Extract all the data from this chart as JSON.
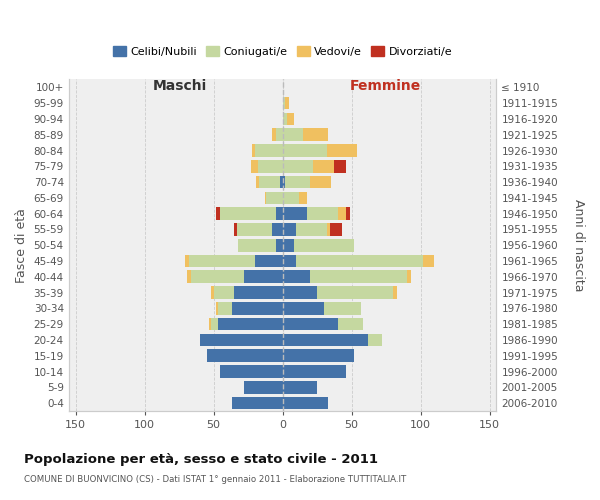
{
  "age_groups": [
    "100+",
    "95-99",
    "90-94",
    "85-89",
    "80-84",
    "75-79",
    "70-74",
    "65-69",
    "60-64",
    "55-59",
    "50-54",
    "45-49",
    "40-44",
    "35-39",
    "30-34",
    "25-29",
    "20-24",
    "15-19",
    "10-14",
    "5-9",
    "0-4"
  ],
  "birth_years": [
    "≤ 1910",
    "1911-1915",
    "1916-1920",
    "1921-1925",
    "1926-1930",
    "1931-1935",
    "1936-1940",
    "1941-1945",
    "1946-1950",
    "1951-1955",
    "1956-1960",
    "1961-1965",
    "1966-1970",
    "1971-1975",
    "1976-1980",
    "1981-1985",
    "1986-1990",
    "1991-1995",
    "1996-2000",
    "2001-2005",
    "2006-2010"
  ],
  "maschi": {
    "celibi": [
      0,
      0,
      0,
      0,
      0,
      0,
      2,
      0,
      5,
      8,
      5,
      20,
      28,
      35,
      37,
      47,
      60,
      55,
      45,
      28,
      37
    ],
    "coniugati": [
      0,
      0,
      0,
      5,
      20,
      18,
      15,
      12,
      40,
      25,
      27,
      48,
      38,
      15,
      10,
      5,
      0,
      0,
      0,
      0,
      0
    ],
    "vedovi": [
      0,
      0,
      0,
      3,
      2,
      5,
      2,
      1,
      0,
      0,
      0,
      3,
      3,
      2,
      1,
      1,
      0,
      0,
      0,
      0,
      0
    ],
    "divorziati": [
      0,
      0,
      0,
      0,
      0,
      0,
      0,
      0,
      3,
      2,
      0,
      0,
      0,
      0,
      0,
      0,
      0,
      0,
      0,
      0,
      0
    ]
  },
  "femmine": {
    "nubili": [
      0,
      0,
      0,
      0,
      0,
      0,
      2,
      0,
      18,
      10,
      8,
      10,
      20,
      25,
      30,
      40,
      62,
      52,
      46,
      25,
      33
    ],
    "coniugate": [
      0,
      2,
      3,
      15,
      32,
      22,
      18,
      12,
      22,
      22,
      44,
      92,
      70,
      55,
      27,
      18,
      10,
      0,
      0,
      0,
      0
    ],
    "vedove": [
      0,
      3,
      5,
      18,
      22,
      15,
      15,
      6,
      6,
      2,
      0,
      8,
      3,
      3,
      0,
      0,
      0,
      0,
      0,
      0,
      0
    ],
    "divorziate": [
      0,
      0,
      0,
      0,
      0,
      9,
      0,
      0,
      3,
      9,
      0,
      0,
      0,
      0,
      0,
      0,
      0,
      0,
      0,
      0,
      0
    ]
  },
  "colors": {
    "celibi": "#4472a8",
    "coniugati": "#c5d8a0",
    "vedovi": "#f0c060",
    "divorziati": "#c03020"
  },
  "title": "Popolazione per età, sesso e stato civile - 2011",
  "subtitle": "COMUNE DI BUONVICINO (CS) - Dati ISTAT 1° gennaio 2011 - Elaborazione TUTTITALIA.IT",
  "xlabel_maschi": "Maschi",
  "xlabel_femmine": "Femmine",
  "ylabel": "Fasce di età",
  "ylabel_right": "Anni di nascita",
  "xlim": 155,
  "bg_color": "#efefef",
  "grid_color": "#cccccc"
}
